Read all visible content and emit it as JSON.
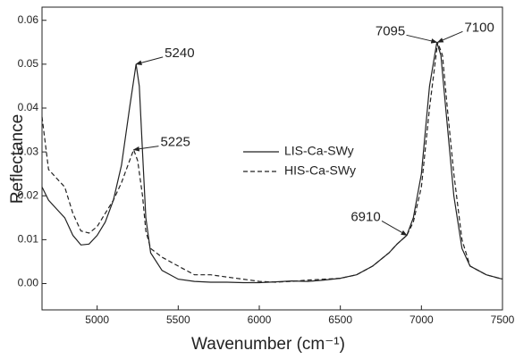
{
  "chart_data": {
    "type": "line",
    "xlabel": "Wavenumber (cm⁻¹)",
    "ylabel": "Reflectance",
    "xlim": [
      4660,
      7500
    ],
    "ylim": [
      -0.006,
      0.063
    ],
    "xticks": [
      5000,
      5500,
      6000,
      6500,
      7000,
      7500
    ],
    "yticks": [
      {
        "value": 0,
        "label": "0.00"
      },
      {
        "value": 0.01,
        "label": "0.01"
      },
      {
        "value": 0.02,
        "label": "0.02"
      },
      {
        "value": 0.03,
        "label": "0.03"
      },
      {
        "value": 0.04,
        "label": "0.04"
      },
      {
        "value": 0.05,
        "label": "0.05"
      },
      {
        "value": 0.06,
        "label": "0.06"
      }
    ],
    "series": [
      {
        "name": "LIS-Ca-SWy",
        "color": "#222222",
        "dash": "solid",
        "x": [
          4660,
          4700,
          4750,
          4800,
          4850,
          4900,
          4950,
          5000,
          5050,
          5100,
          5150,
          5200,
          5240,
          5260,
          5280,
          5300,
          5330,
          5400,
          5500,
          5600,
          5700,
          5800,
          5900,
          6000,
          6100,
          6200,
          6300,
          6400,
          6500,
          6600,
          6700,
          6800,
          6850,
          6910,
          6950,
          7000,
          7050,
          7095,
          7120,
          7150,
          7200,
          7250,
          7300,
          7400,
          7500
        ],
        "values": [
          0.022,
          0.019,
          0.017,
          0.015,
          0.011,
          0.0088,
          0.009,
          0.011,
          0.014,
          0.019,
          0.027,
          0.04,
          0.05,
          0.045,
          0.03,
          0.015,
          0.007,
          0.003,
          0.001,
          0.0005,
          0.0003,
          0.0003,
          0.0002,
          0.0002,
          0.0004,
          0.0006,
          0.0005,
          0.0008,
          0.0012,
          0.002,
          0.004,
          0.007,
          0.009,
          0.011,
          0.015,
          0.025,
          0.045,
          0.055,
          0.052,
          0.04,
          0.02,
          0.008,
          0.004,
          0.002,
          0.001
        ]
      },
      {
        "name": "HIS-Ca-SWy",
        "color": "#222222",
        "dash": "dashed",
        "x": [
          4660,
          4700,
          4750,
          4800,
          4850,
          4900,
          4950,
          5000,
          5050,
          5100,
          5150,
          5200,
          5225,
          5250,
          5280,
          5300,
          5330,
          5400,
          5500,
          5600,
          5700,
          5800,
          5900,
          6000,
          6100,
          6200,
          6300,
          6400,
          6500,
          6600,
          6700,
          6800,
          6850,
          6910,
          6950,
          7000,
          7050,
          7100,
          7130,
          7160,
          7200,
          7250,
          7300,
          7400,
          7500
        ],
        "values": [
          0.038,
          0.026,
          0.024,
          0.022,
          0.016,
          0.012,
          0.0115,
          0.013,
          0.016,
          0.019,
          0.023,
          0.028,
          0.0305,
          0.028,
          0.02,
          0.012,
          0.008,
          0.006,
          0.004,
          0.002,
          0.002,
          0.0015,
          0.001,
          0.0005,
          0.0003,
          0.0005,
          0.0008,
          0.001,
          0.0012,
          0.002,
          0.004,
          0.007,
          0.009,
          0.011,
          0.014,
          0.022,
          0.04,
          0.055,
          0.052,
          0.04,
          0.025,
          0.01,
          0.004,
          0.002,
          0.001
        ]
      }
    ],
    "annotations": [
      {
        "text": "5240",
        "x": 5240,
        "y": 0.05
      },
      {
        "text": "5225",
        "x": 5225,
        "y": 0.0305
      },
      {
        "text": "7095",
        "x": 7095,
        "y": 0.055
      },
      {
        "text": "7100",
        "x": 7100,
        "y": 0.055
      },
      {
        "text": "6910",
        "x": 6910,
        "y": 0.011
      }
    ]
  }
}
